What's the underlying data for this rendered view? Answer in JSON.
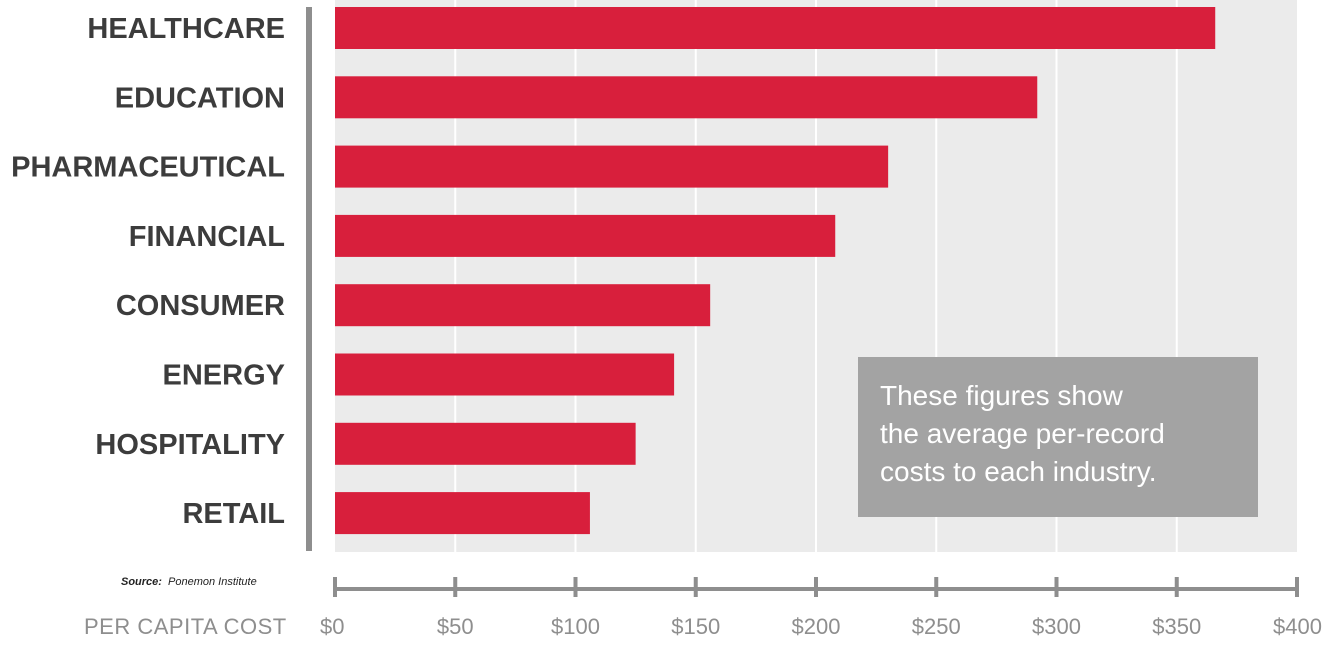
{
  "chart_data": {
    "type": "bar",
    "orientation": "horizontal",
    "categories": [
      "HEALTHCARE",
      "EDUCATION",
      "PHARMACEUTICAL",
      "FINANCIAL",
      "CONSUMER",
      "ENERGY",
      "HOSPITALITY",
      "RETAIL"
    ],
    "values": [
      366,
      292,
      230,
      208,
      156,
      141,
      125,
      106
    ],
    "xlabel": "PER CAPITA COST",
    "xlim": [
      0,
      400
    ],
    "x_ticks": [
      0,
      50,
      100,
      150,
      200,
      250,
      300,
      350,
      400
    ],
    "x_tick_labels": [
      "$0",
      "$50",
      "$100",
      "$150",
      "$200",
      "$250",
      "$300",
      "$350",
      "$400"
    ],
    "grid": true,
    "bar_color": "#d81f3c",
    "plot_background": "#ebebeb",
    "source_label": "Source:",
    "source": "Ponemon Institute",
    "annotation": [
      "These figures show",
      "the average per-record",
      "costs to each industry."
    ]
  }
}
